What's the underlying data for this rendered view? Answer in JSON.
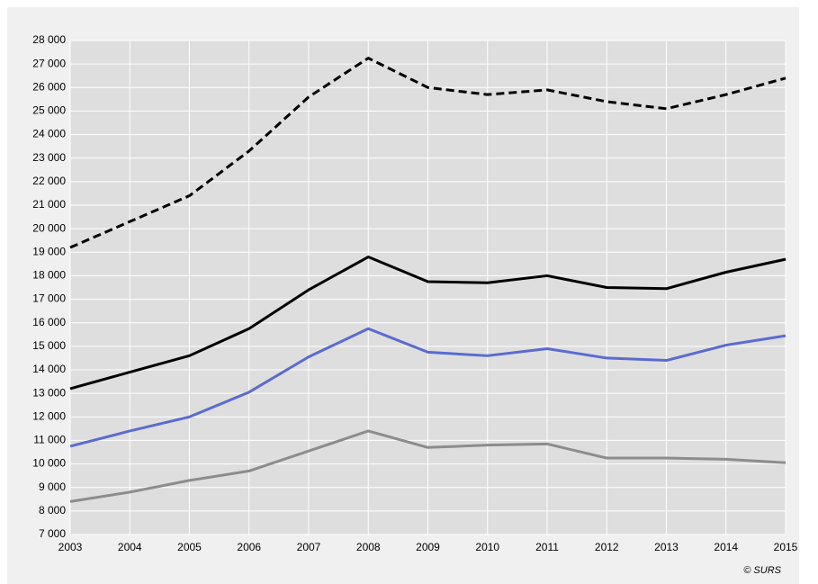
{
  "chart_data": {
    "type": "line",
    "x": [
      2003,
      2004,
      2005,
      2006,
      2007,
      2008,
      2009,
      2010,
      2011,
      2012,
      2013,
      2014,
      2015
    ],
    "series": [
      {
        "color": "#000000",
        "style": "dashed",
        "values": [
          19200,
          20300,
          21400,
          23300,
          25600,
          27250,
          26000,
          25700,
          25900,
          25400,
          25100,
          25700,
          26400
        ]
      },
      {
        "color": "#000000",
        "style": "solid",
        "values": [
          13200,
          13900,
          14600,
          15750,
          17400,
          18800,
          17750,
          17700,
          18000,
          17500,
          17450,
          18150,
          18700
        ]
      },
      {
        "color": "#5a6bd0",
        "style": "solid",
        "values": [
          10750,
          11400,
          12000,
          13050,
          14550,
          15750,
          14750,
          14600,
          14900,
          14500,
          14400,
          15050,
          15450
        ]
      },
      {
        "color": "#8c8c8c",
        "style": "solid",
        "values": [
          8400,
          8800,
          9300,
          9700,
          10550,
          11400,
          10700,
          10800,
          10850,
          10250,
          10250,
          10200,
          10050
        ]
      }
    ],
    "xlim": [
      2003,
      2015
    ],
    "xticks": [
      2003,
      2004,
      2005,
      2006,
      2007,
      2008,
      2009,
      2010,
      2011,
      2012,
      2013,
      2014,
      2015
    ],
    "ylim": [
      7000,
      28000
    ],
    "yticks": [
      {
        "value": 7000,
        "label": "7 000"
      },
      {
        "value": 8000,
        "label": "8 000"
      },
      {
        "value": 9000,
        "label": "9 000"
      },
      {
        "value": 10000,
        "label": "10 000"
      },
      {
        "value": 11000,
        "label": "11 000"
      },
      {
        "value": 12000,
        "label": "12 000"
      },
      {
        "value": 13000,
        "label": "13 000"
      },
      {
        "value": 14000,
        "label": "14 000"
      },
      {
        "value": 15000,
        "label": "15 000"
      },
      {
        "value": 16000,
        "label": "16 000"
      },
      {
        "value": 17000,
        "label": "17 000"
      },
      {
        "value": 18000,
        "label": "18 000"
      },
      {
        "value": 19000,
        "label": "19 000"
      },
      {
        "value": 20000,
        "label": "20 000"
      },
      {
        "value": 21000,
        "label": "21 000"
      },
      {
        "value": 22000,
        "label": "22 000"
      },
      {
        "value": 23000,
        "label": "23 000"
      },
      {
        "value": 24000,
        "label": "24 000"
      },
      {
        "value": 25000,
        "label": "25 000"
      },
      {
        "value": 26000,
        "label": "26 000"
      },
      {
        "value": 27000,
        "label": "27 000"
      },
      {
        "value": 28000,
        "label": "28 000"
      }
    ],
    "grid": true,
    "source": "© SURS"
  }
}
